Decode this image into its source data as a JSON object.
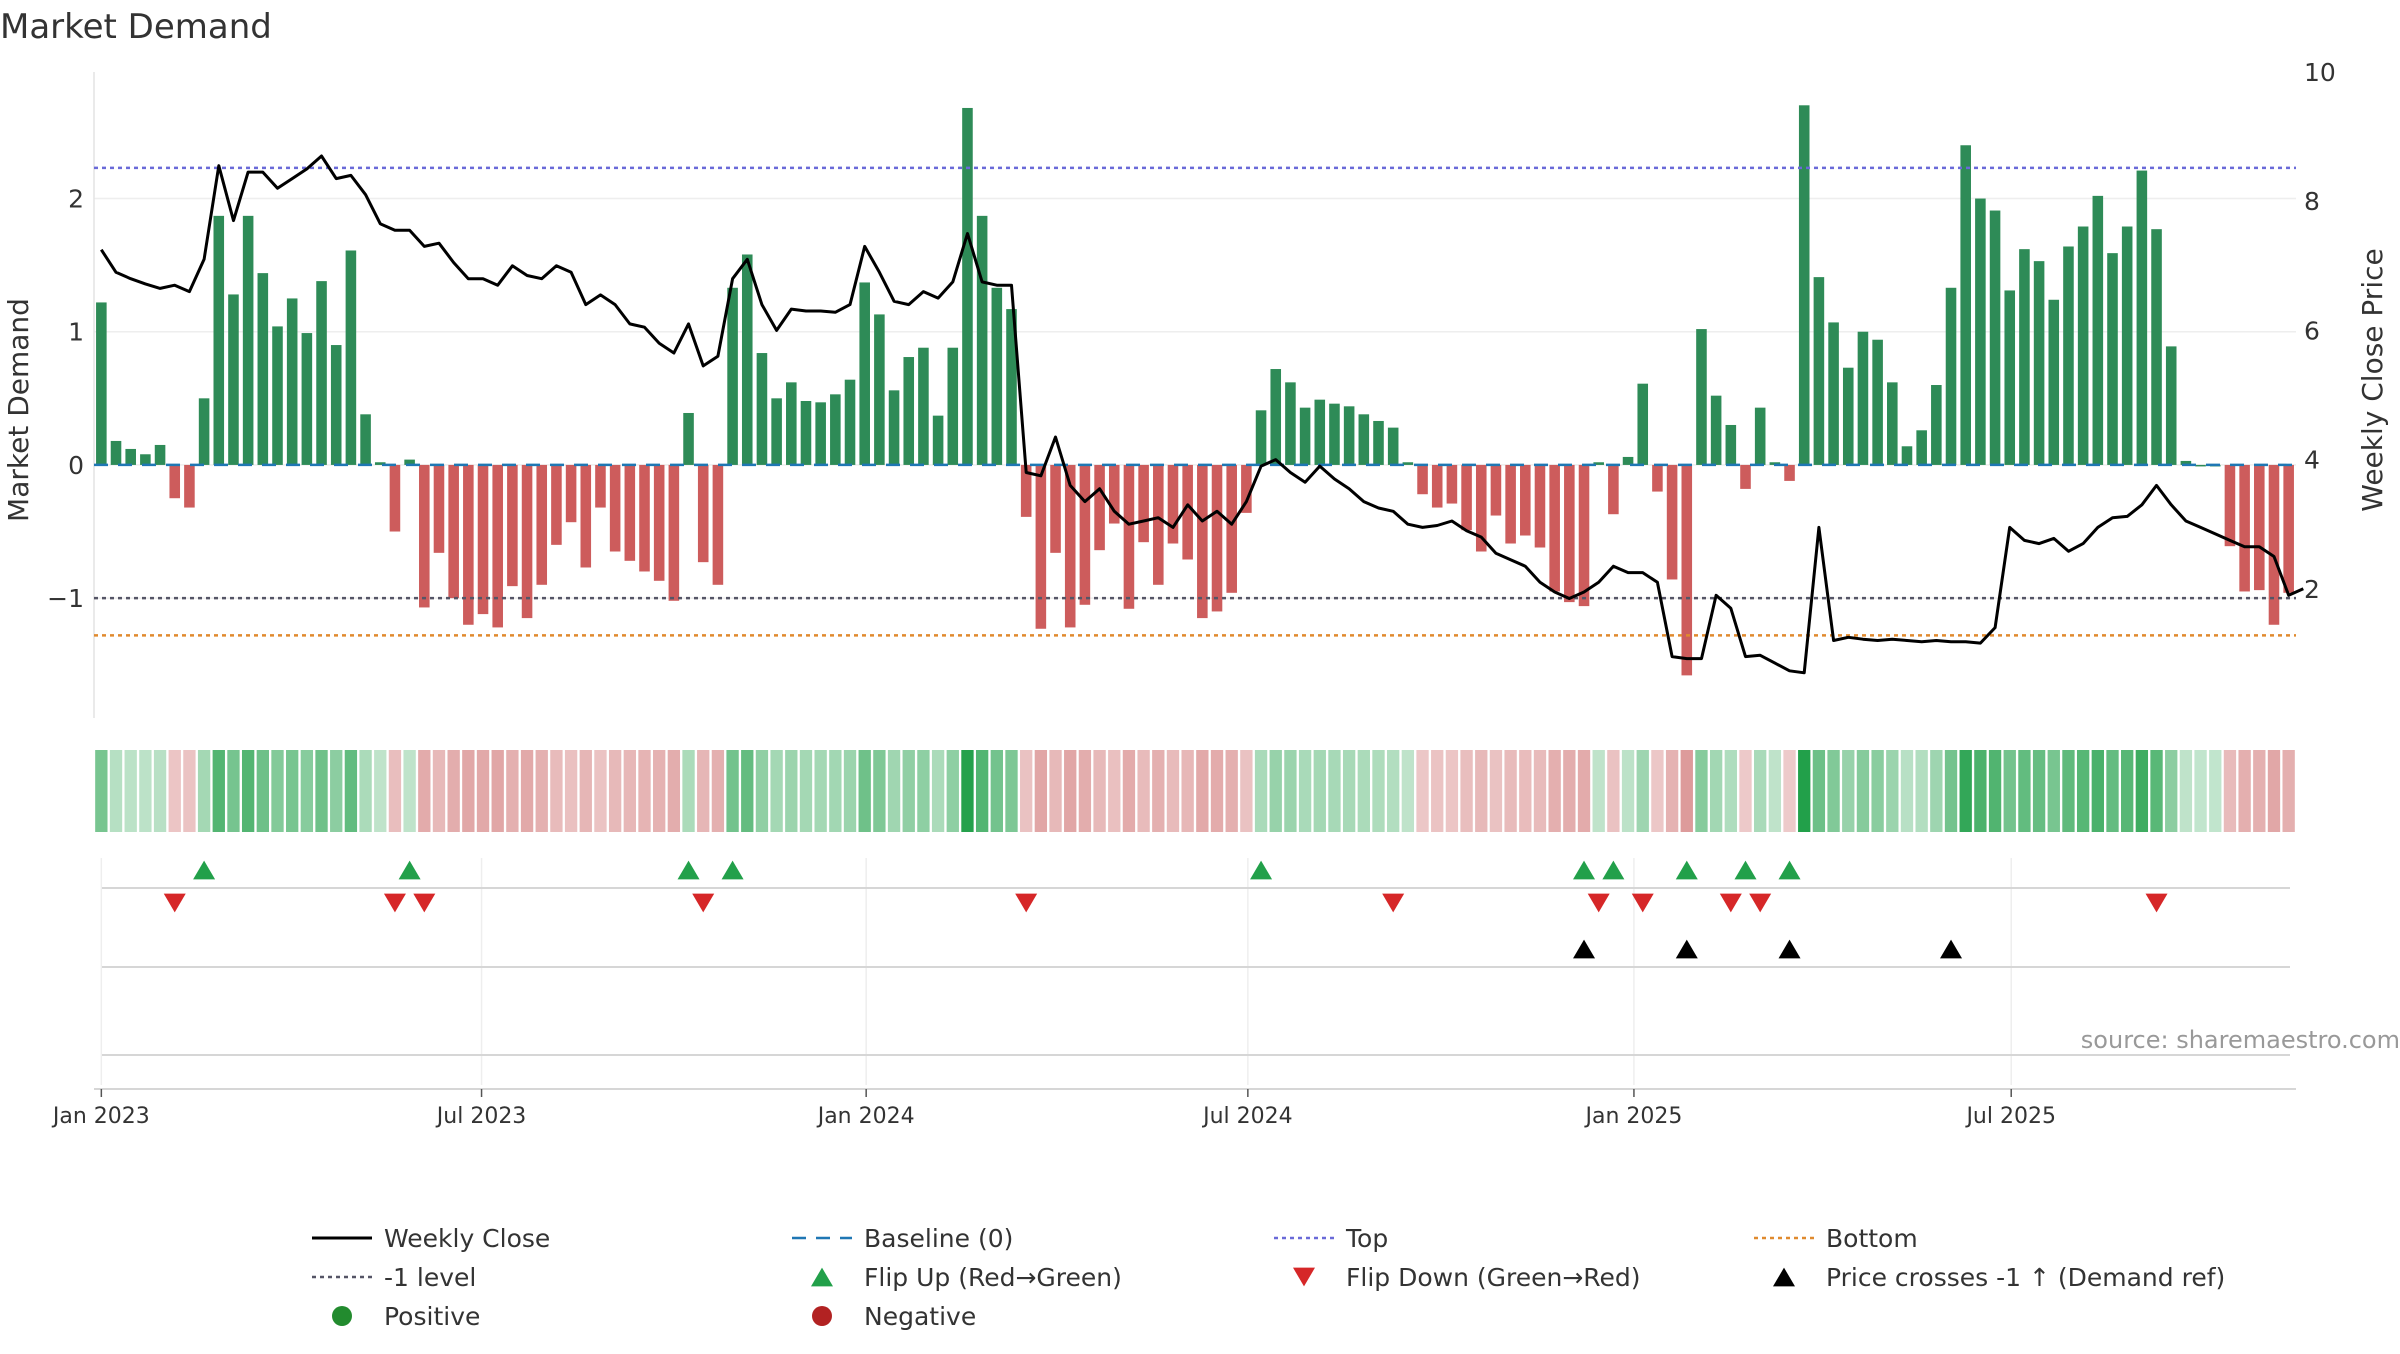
{
  "chart_data": {
    "type": "bar",
    "title": "Market Demand",
    "ylabel_left": "Market Demand",
    "ylabel_right": "Weekly Close Price",
    "ylim_left": [
      -1.9,
      2.95
    ],
    "ylim_right": [
      0,
      10
    ],
    "yticks_left": [
      -1,
      0,
      1,
      2
    ],
    "ytick_labels_left": [
      "−1",
      "0",
      "1",
      "2"
    ],
    "yticks_right": [
      2,
      4,
      6,
      8,
      10
    ],
    "ytick_labels_right": [
      "2",
      "4",
      "6",
      "8",
      "10"
    ],
    "x_start": "2023-01-02",
    "x_end": "2025-09-22",
    "xticks": [
      {
        "label": "Jan 2023",
        "week": 0
      },
      {
        "label": "Jul 2023",
        "week": 25.9
      },
      {
        "label": "Jan 2024",
        "week": 52.1
      },
      {
        "label": "Jul 2024",
        "week": 78.1
      },
      {
        "label": "Jan 2025",
        "week": 104.4
      },
      {
        "label": "Jul 2025",
        "week": 130.1
      }
    ],
    "reference_lines": {
      "top": 2.23,
      "minus_one": -1.0,
      "bottom": -1.28,
      "baseline": 0
    },
    "demand": [
      1.22,
      0.18,
      0.12,
      0.08,
      0.15,
      -0.25,
      -0.32,
      0.5,
      1.87,
      1.28,
      1.87,
      1.44,
      1.04,
      1.25,
      0.99,
      1.38,
      0.9,
      1.61,
      0.38,
      0.02,
      -0.5,
      0.04,
      -1.07,
      -0.66,
      -1.0,
      -1.2,
      -1.12,
      -1.22,
      -0.91,
      -1.15,
      -0.9,
      -0.6,
      -0.43,
      -0.77,
      -0.32,
      -0.65,
      -0.72,
      -0.8,
      -0.87,
      -1.02,
      0.39,
      -0.73,
      -0.9,
      1.33,
      1.58,
      0.84,
      0.5,
      0.62,
      0.48,
      0.47,
      0.53,
      0.64,
      1.37,
      1.13,
      0.56,
      0.81,
      0.88,
      0.37,
      0.88,
      2.68,
      1.87,
      1.33,
      1.17,
      -0.39,
      -1.23,
      -0.66,
      -1.22,
      -1.05,
      -0.64,
      -0.44,
      -1.08,
      -0.58,
      -0.9,
      -0.59,
      -0.71,
      -1.15,
      -1.1,
      -0.96,
      -0.36,
      0.41,
      0.72,
      0.62,
      0.43,
      0.49,
      0.46,
      0.44,
      0.38,
      0.33,
      0.28,
      0.02,
      -0.22,
      -0.32,
      -0.29,
      -0.49,
      -0.65,
      -0.38,
      -0.59,
      -0.53,
      -0.62,
      -0.95,
      -1.03,
      -1.06,
      0.02,
      -0.37,
      0.06,
      0.61,
      -0.2,
      -0.86,
      -1.58,
      1.02,
      0.52,
      0.3,
      -0.18,
      0.43,
      0.02,
      -0.12,
      2.7,
      1.41,
      1.07,
      0.73,
      1.0,
      0.94,
      0.62,
      0.14,
      0.26,
      0.6,
      1.33,
      2.4,
      2.0,
      1.91,
      1.31,
      1.62,
      1.53,
      1.24,
      1.64,
      1.79,
      2.02,
      1.59,
      1.79,
      2.21,
      1.77,
      0.89,
      0.03,
      0.0,
      0.0,
      -0.61,
      -0.95,
      -0.94,
      -1.2,
      -0.96
    ],
    "weekly_close": [
      7.25,
      6.9,
      6.8,
      6.72,
      6.65,
      6.7,
      6.6,
      7.1,
      8.55,
      7.7,
      8.45,
      8.45,
      8.2,
      8.35,
      8.5,
      8.7,
      8.35,
      8.4,
      8.1,
      7.65,
      7.55,
      7.55,
      7.3,
      7.35,
      7.05,
      6.8,
      6.8,
      6.7,
      7.0,
      6.85,
      6.8,
      7.0,
      6.9,
      6.4,
      6.55,
      6.4,
      6.1,
      6.05,
      5.8,
      5.65,
      6.1,
      5.45,
      5.6,
      6.8,
      7.1,
      6.4,
      6.0,
      6.33,
      6.3,
      6.3,
      6.28,
      6.4,
      7.3,
      6.9,
      6.45,
      6.4,
      6.6,
      6.5,
      6.75,
      7.5,
      6.75,
      6.7,
      6.7,
      3.8,
      3.75,
      4.35,
      3.6,
      3.35,
      3.55,
      3.2,
      3.0,
      3.05,
      3.1,
      2.95,
      3.3,
      3.05,
      3.2,
      3.0,
      3.35,
      3.9,
      4.0,
      3.8,
      3.65,
      3.9,
      3.7,
      3.55,
      3.35,
      3.25,
      3.2,
      3.0,
      2.95,
      2.98,
      3.05,
      2.9,
      2.8,
      2.55,
      2.45,
      2.35,
      2.1,
      1.95,
      1.85,
      1.95,
      2.1,
      2.35,
      2.25,
      2.25,
      2.1,
      0.95,
      0.92,
      0.92,
      1.9,
      1.7,
      0.95,
      0.97,
      0.85,
      0.73,
      0.7,
      2.95,
      1.2,
      1.25,
      1.22,
      1.2,
      1.22,
      1.2,
      1.18,
      1.2,
      1.18,
      1.18,
      1.16,
      1.4,
      2.95,
      2.75,
      2.7,
      2.78,
      2.58,
      2.7,
      2.95,
      3.1,
      3.12,
      3.3,
      3.6,
      3.3,
      3.05,
      2.95,
      2.85,
      2.75,
      2.65,
      2.65,
      2.5,
      1.9,
      2.0
    ],
    "flip_up_weeks": [
      7,
      21,
      40,
      43,
      79,
      101,
      103,
      108,
      112,
      115
    ],
    "flip_down_weeks": [
      5,
      20,
      22,
      41,
      63,
      88,
      102,
      105,
      111,
      113,
      140
    ],
    "price_cross_weeks": [
      101,
      108,
      115,
      126
    ],
    "strip_note": "one cell per week, colour follows demand sign and magnitude",
    "source": "source: sharemaestro.com",
    "legend": [
      {
        "key": "weekly_close",
        "label": "Weekly Close",
        "symbol": "line",
        "color": "#000000"
      },
      {
        "key": "baseline",
        "label": "Baseline (0)",
        "symbol": "dash",
        "color": "#1f77b4"
      },
      {
        "key": "top",
        "label": "Top",
        "symbol": "dot",
        "color": "#6a6ad8"
      },
      {
        "key": "bottom",
        "label": "Bottom",
        "symbol": "dot",
        "color": "#e08a2e"
      },
      {
        "key": "minus_one",
        "label": "-1 level",
        "symbol": "dot",
        "color": "#555566"
      },
      {
        "key": "flip_up",
        "label": "Flip Up (Red→Green)",
        "symbol": "tri-up",
        "color": "#22a04a"
      },
      {
        "key": "flip_down",
        "label": "Flip Down (Green→Red)",
        "symbol": "tri-down",
        "color": "#d62728"
      },
      {
        "key": "price_cross",
        "label": "Price crosses -1 ↑ (Demand ref)",
        "symbol": "tri-up",
        "color": "#000000"
      },
      {
        "key": "positive",
        "label": "Positive",
        "symbol": "circle",
        "color": "#228b2e"
      },
      {
        "key": "negative",
        "label": "Negative",
        "symbol": "circle",
        "color": "#b22222"
      }
    ],
    "colors": {
      "positive_bar": "#2e8b57",
      "negative_bar": "#cd5c5c",
      "price_line": "#000000"
    }
  }
}
